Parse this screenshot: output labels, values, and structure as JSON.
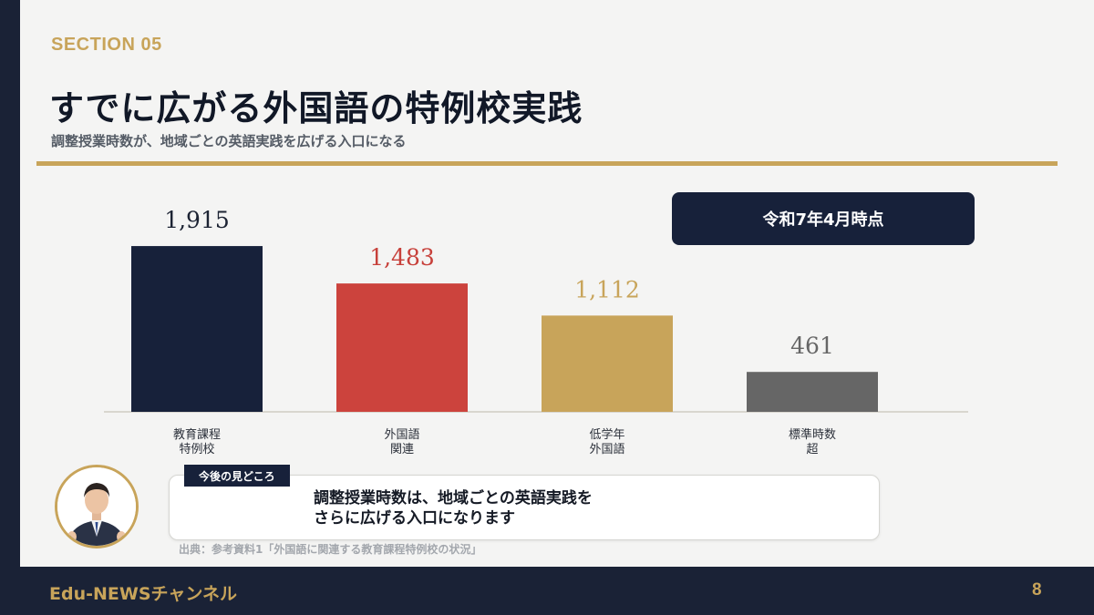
{
  "section_label": "SECTION 05",
  "title": "すでに広がる外国語の特例校実践",
  "subtitle": "調整授業時数が、地域ごとの英語実践を広げる入口になる",
  "badge": "令和7年4月時点",
  "chart_data": {
    "type": "bar",
    "categories": [
      [
        "教育課程",
        "特例校"
      ],
      [
        "外国語",
        "関連"
      ],
      [
        "低学年",
        "外国語"
      ],
      [
        "標準時数",
        "超"
      ]
    ],
    "values": [
      1915,
      1483,
      1112,
      461
    ],
    "value_labels": [
      "1,915",
      "1,483",
      "1,112",
      "461"
    ],
    "colors": [
      "#17213a",
      "#cc433d",
      "#c8a45a",
      "#666666"
    ],
    "label_colors": [
      "#1c2333",
      "#c7403a",
      "#c8a45a",
      "#666666"
    ],
    "ylim": [
      0,
      2000
    ],
    "grid": false
  },
  "note": {
    "tag": "今後の見どころ",
    "line1": "調整授業時数は、地域ごとの英語実践を",
    "line2": "さらに広げる入口になります"
  },
  "source": "出典：参考資料1「外国語に関連する教育課程特例校の状況」",
  "footer": {
    "brand": "Edu-NEWSチャンネル",
    "page": "8"
  }
}
